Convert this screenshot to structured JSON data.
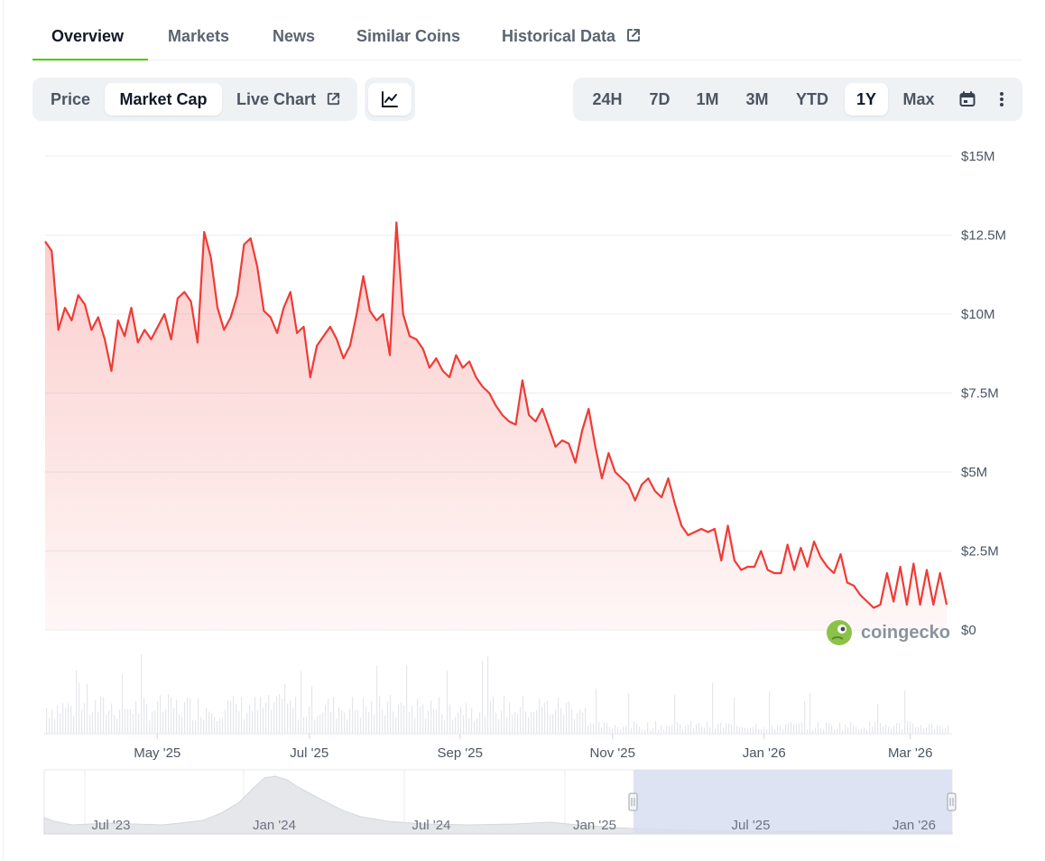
{
  "tabs": [
    {
      "label": "Overview",
      "active": true
    },
    {
      "label": "Markets"
    },
    {
      "label": "News"
    },
    {
      "label": "Similar Coins"
    },
    {
      "label": "Historical Data",
      "external": true
    }
  ],
  "metric_toggle": {
    "options": [
      "Price",
      "Market Cap",
      "Live Chart"
    ],
    "selected": "Market Cap",
    "chart_type_icon": "line-chart-icon"
  },
  "range_toggle": {
    "options": [
      "24H",
      "7D",
      "1M",
      "3M",
      "YTD",
      "1Y",
      "Max"
    ],
    "selected": "1Y",
    "icons": [
      "calendar-icon",
      "more-vertical-icon"
    ]
  },
  "watermark": "coingecko",
  "colors": {
    "line": "#ef3b36",
    "accent": "#4bcc00",
    "navigator_selection": "#d7def0"
  },
  "chart_data": {
    "type": "area",
    "ylim": [
      0,
      15
    ],
    "y_ticks": [
      "$0",
      "$2.5M",
      "$5M",
      "$7.5M",
      "$10M",
      "$12.5M",
      "$15M"
    ],
    "x_ticks": [
      "May '25",
      "Jul '25",
      "Sep '25",
      "Nov '25",
      "Jan '26",
      "Mar '26"
    ],
    "x_tick_pos": [
      0.1245,
      0.292,
      0.458,
      0.626,
      0.793,
      0.954
    ],
    "series": [
      {
        "values": [
          12.3,
          12.0,
          9.5,
          10.2,
          9.8,
          10.6,
          10.3,
          9.5,
          9.9,
          9.2,
          8.2,
          9.8,
          9.3,
          10.2,
          9.1,
          9.5,
          9.2,
          9.6,
          10.0,
          9.2,
          10.5,
          10.7,
          10.4,
          9.1,
          12.6,
          11.8,
          10.2,
          9.5,
          9.9,
          10.6,
          12.2,
          12.4,
          11.5,
          10.1,
          9.9,
          9.4,
          10.2,
          10.7,
          9.4,
          9.6,
          8.0,
          9.0,
          9.3,
          9.6,
          9.2,
          8.6,
          9.0,
          10.0,
          11.2,
          10.1,
          9.8,
          10.0,
          8.7,
          12.9,
          10.0,
          9.3,
          9.2,
          8.9,
          8.3,
          8.6,
          8.2,
          8.0,
          8.7,
          8.3,
          8.5,
          8.0,
          7.7,
          7.5,
          7.1,
          6.8,
          6.6,
          6.5,
          7.9,
          6.8,
          6.6,
          7.0,
          6.4,
          5.8,
          6.0,
          5.9,
          5.3,
          6.3,
          7.0,
          5.8,
          4.8,
          5.6,
          5.0,
          4.8,
          4.6,
          4.1,
          4.6,
          4.8,
          4.4,
          4.2,
          4.8,
          4.0,
          3.3,
          3.0,
          3.1,
          3.2,
          3.1,
          3.2,
          2.2,
          3.3,
          2.2,
          1.9,
          2.0,
          2.0,
          2.5,
          1.9,
          1.8,
          1.8,
          2.7,
          1.9,
          2.6,
          2.0,
          2.8,
          2.3,
          2.0,
          1.8,
          2.4,
          1.5,
          1.4,
          1.1,
          0.9,
          0.7,
          0.8,
          1.8,
          0.9,
          2.0,
          0.8,
          2.1,
          0.8,
          1.9,
          0.8,
          1.8,
          0.8
        ]
      }
    ]
  }
}
